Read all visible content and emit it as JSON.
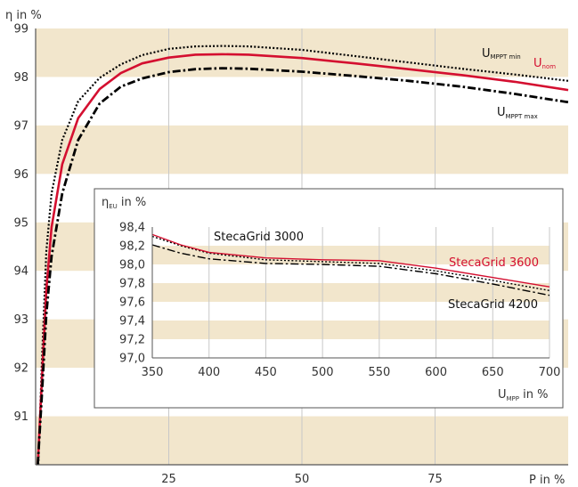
{
  "chart_data": [
    {
      "type": "line",
      "ylabel": "η in %",
      "xlabel": "P in %",
      "xlim": [
        0,
        100
      ],
      "ylim": [
        90,
        99
      ],
      "xticks": [
        25,
        50,
        75
      ],
      "yticks": [
        91,
        92,
        93,
        94,
        95,
        96,
        97,
        98,
        99
      ],
      "bands": [
        [
          90,
          91
        ],
        [
          92,
          93
        ],
        [
          94,
          95
        ],
        [
          96,
          97
        ],
        [
          98,
          99
        ]
      ],
      "grid": true,
      "series": [
        {
          "name": "U_MPPT min",
          "color": "#000000",
          "dash": "dotted",
          "points": [
            [
              0.5,
              90
            ],
            [
              1.2,
              92.2
            ],
            [
              2,
              94.4
            ],
            [
              3,
              95.6
            ],
            [
              5,
              96.7
            ],
            [
              8,
              97.5
            ],
            [
              12,
              97.98
            ],
            [
              16,
              98.26
            ],
            [
              20,
              98.45
            ],
            [
              25,
              98.58
            ],
            [
              30,
              98.63
            ],
            [
              35,
              98.64
            ],
            [
              40,
              98.63
            ],
            [
              50,
              98.56
            ],
            [
              60,
              98.43
            ],
            [
              70,
              98.3
            ],
            [
              80,
              98.17
            ],
            [
              90,
              98.05
            ],
            [
              100,
              97.92
            ]
          ]
        },
        {
          "name": "U_nom",
          "color": "#d40f30",
          "dash": "solid",
          "points": [
            [
              0.4,
              90
            ],
            [
              1.2,
              91.8
            ],
            [
              2,
              93.6
            ],
            [
              3,
              94.9
            ],
            [
              5,
              96.2
            ],
            [
              8,
              97.15
            ],
            [
              12,
              97.75
            ],
            [
              16,
              98.08
            ],
            [
              20,
              98.28
            ],
            [
              25,
              98.4
            ],
            [
              30,
              98.46
            ],
            [
              35,
              98.47
            ],
            [
              40,
              98.46
            ],
            [
              50,
              98.39
            ],
            [
              60,
              98.28
            ],
            [
              70,
              98.16
            ],
            [
              80,
              98.04
            ],
            [
              90,
              97.9
            ],
            [
              100,
              97.73
            ]
          ]
        },
        {
          "name": "U_MPPT max",
          "color": "#000000",
          "dash": "dashdot",
          "points": [
            [
              0.4,
              90
            ],
            [
              1.2,
              91.5
            ],
            [
              2,
              93.1
            ],
            [
              3,
              94.3
            ],
            [
              5,
              95.6
            ],
            [
              8,
              96.7
            ],
            [
              12,
              97.45
            ],
            [
              16,
              97.8
            ],
            [
              20,
              97.97
            ],
            [
              25,
              98.1
            ],
            [
              30,
              98.16
            ],
            [
              35,
              98.18
            ],
            [
              40,
              98.17
            ],
            [
              50,
              98.11
            ],
            [
              60,
              98.02
            ],
            [
              70,
              97.92
            ],
            [
              80,
              97.8
            ],
            [
              90,
              97.65
            ],
            [
              100,
              97.48
            ]
          ]
        }
      ],
      "labels": {
        "mppt_min": {
          "main": "U",
          "sub": "MPPT min"
        },
        "nom": {
          "main": "U",
          "sub": "nom"
        },
        "mppt_max": {
          "main": "U",
          "sub": "MPPT max"
        }
      }
    },
    {
      "type": "line",
      "ylabel_main": "η",
      "ylabel_sub": "EU",
      "ylabel_rest": " in %",
      "xlabel_main": "U",
      "xlabel_sub": "MPP",
      "xlabel_rest": " in %",
      "xlim": [
        350,
        700
      ],
      "ylim": [
        97.0,
        98.4
      ],
      "xticks": [
        350,
        400,
        450,
        500,
        550,
        600,
        650,
        700
      ],
      "yticks": [
        97.0,
        97.2,
        97.4,
        97.6,
        97.8,
        98.0,
        98.2,
        98.4
      ],
      "ytick_labels": [
        "97,0",
        "97,2",
        "97,4",
        "97,6",
        "97,8",
        "98,0",
        "98,2",
        "98,4"
      ],
      "bands": [
        [
          97.2,
          97.4
        ],
        [
          97.6,
          97.8
        ],
        [
          98.0,
          98.2
        ]
      ],
      "series": [
        {
          "name": "StecaGrid 3000",
          "color": "#000000",
          "dash": "dotted",
          "points": [
            [
              350,
              98.3
            ],
            [
              375,
              98.2
            ],
            [
              400,
              98.12
            ],
            [
              450,
              98.05
            ],
            [
              500,
              98.03
            ],
            [
              550,
              98.01
            ],
            [
              600,
              97.93
            ],
            [
              650,
              97.83
            ],
            [
              700,
              97.72
            ]
          ]
        },
        {
          "name": "StecaGrid 3600",
          "color": "#d40f30",
          "dash": "solid",
          "points": [
            [
              350,
              98.32
            ],
            [
              375,
              98.21
            ],
            [
              400,
              98.13
            ],
            [
              450,
              98.07
            ],
            [
              500,
              98.05
            ],
            [
              550,
              98.04
            ],
            [
              600,
              97.96
            ],
            [
              650,
              97.86
            ],
            [
              700,
              97.76
            ]
          ]
        },
        {
          "name": "StecaGrid 4200",
          "color": "#000000",
          "dash": "dashdot",
          "points": [
            [
              350,
              98.21
            ],
            [
              375,
              98.12
            ],
            [
              400,
              98.06
            ],
            [
              450,
              98.01
            ],
            [
              500,
              98.0
            ],
            [
              550,
              97.98
            ],
            [
              600,
              97.9
            ],
            [
              650,
              97.79
            ],
            [
              700,
              97.67
            ]
          ]
        }
      ]
    }
  ]
}
